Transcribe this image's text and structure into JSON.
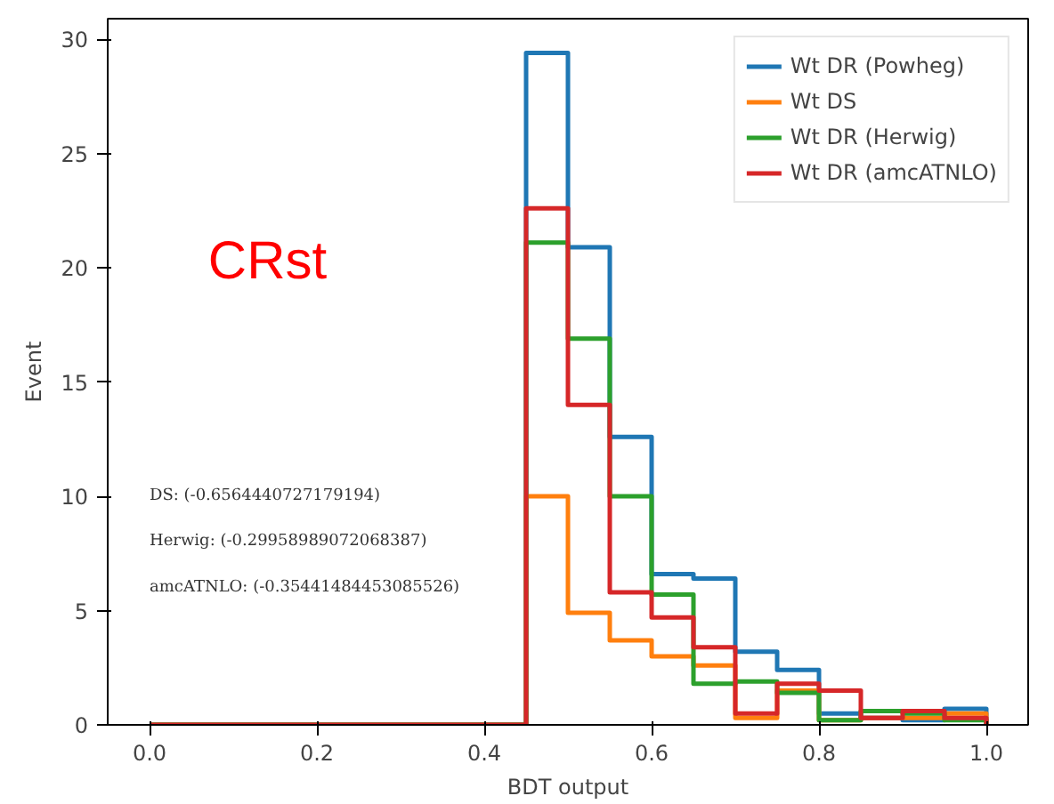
{
  "chart_data": {
    "type": "histogram",
    "xlabel": "BDT output",
    "ylabel": "Event",
    "bins": [
      0.0,
      0.05,
      0.1,
      0.15,
      0.2,
      0.25,
      0.3,
      0.35,
      0.4,
      0.45,
      0.5,
      0.55,
      0.6,
      0.65,
      0.7,
      0.75,
      0.8,
      0.85,
      0.9,
      0.95,
      1.0
    ],
    "series": [
      {
        "name": "Wt DR (Powheg)",
        "color": "#1f77b4",
        "values": [
          0,
          0,
          0,
          0,
          0,
          0,
          0,
          0,
          0,
          29.4,
          20.9,
          12.6,
          6.6,
          6.4,
          3.2,
          2.4,
          0.5,
          0.3,
          0.2,
          0.7
        ]
      },
      {
        "name": "Wt DS",
        "color": "#ff7f0e",
        "values": [
          0,
          0,
          0,
          0,
          0,
          0,
          0,
          0,
          0,
          10.0,
          4.9,
          3.7,
          3.0,
          2.6,
          0.3,
          1.5,
          0.2,
          0.3,
          0.3,
          0.5
        ]
      },
      {
        "name": "Wt DR (Herwig)",
        "color": "#2ca02c",
        "values": [
          0,
          0,
          0,
          0,
          0,
          0,
          0,
          0,
          0,
          21.1,
          16.9,
          10.0,
          5.7,
          1.8,
          1.9,
          1.4,
          0.2,
          0.6,
          0.5,
          0.2
        ]
      },
      {
        "name": "Wt DR (amcATNLO)",
        "color": "#d62728",
        "values": [
          0,
          0,
          0,
          0,
          0,
          0,
          0,
          0,
          0,
          22.6,
          14.0,
          5.8,
          4.7,
          3.4,
          0.5,
          1.8,
          1.5,
          0.3,
          0.6,
          0.3
        ]
      }
    ],
    "xlim": [
      -0.05,
      1.05
    ],
    "ylim": [
      0,
      30.9
    ],
    "xticks": [
      {
        "value": 0,
        "label": "0.0"
      },
      0.2,
      0.4,
      0.6,
      0.8,
      {
        "value": 1,
        "label": "1.0"
      }
    ],
    "yticks": [
      0,
      5,
      10,
      15,
      20,
      25,
      30
    ],
    "annotations": [
      "CRst",
      "DS: (-0.6564440727179194)",
      "Herwig: (-0.29958989072068387)",
      "amcATNLO: (-0.35441484453085526)"
    ],
    "grid": false,
    "legend": "top right"
  }
}
